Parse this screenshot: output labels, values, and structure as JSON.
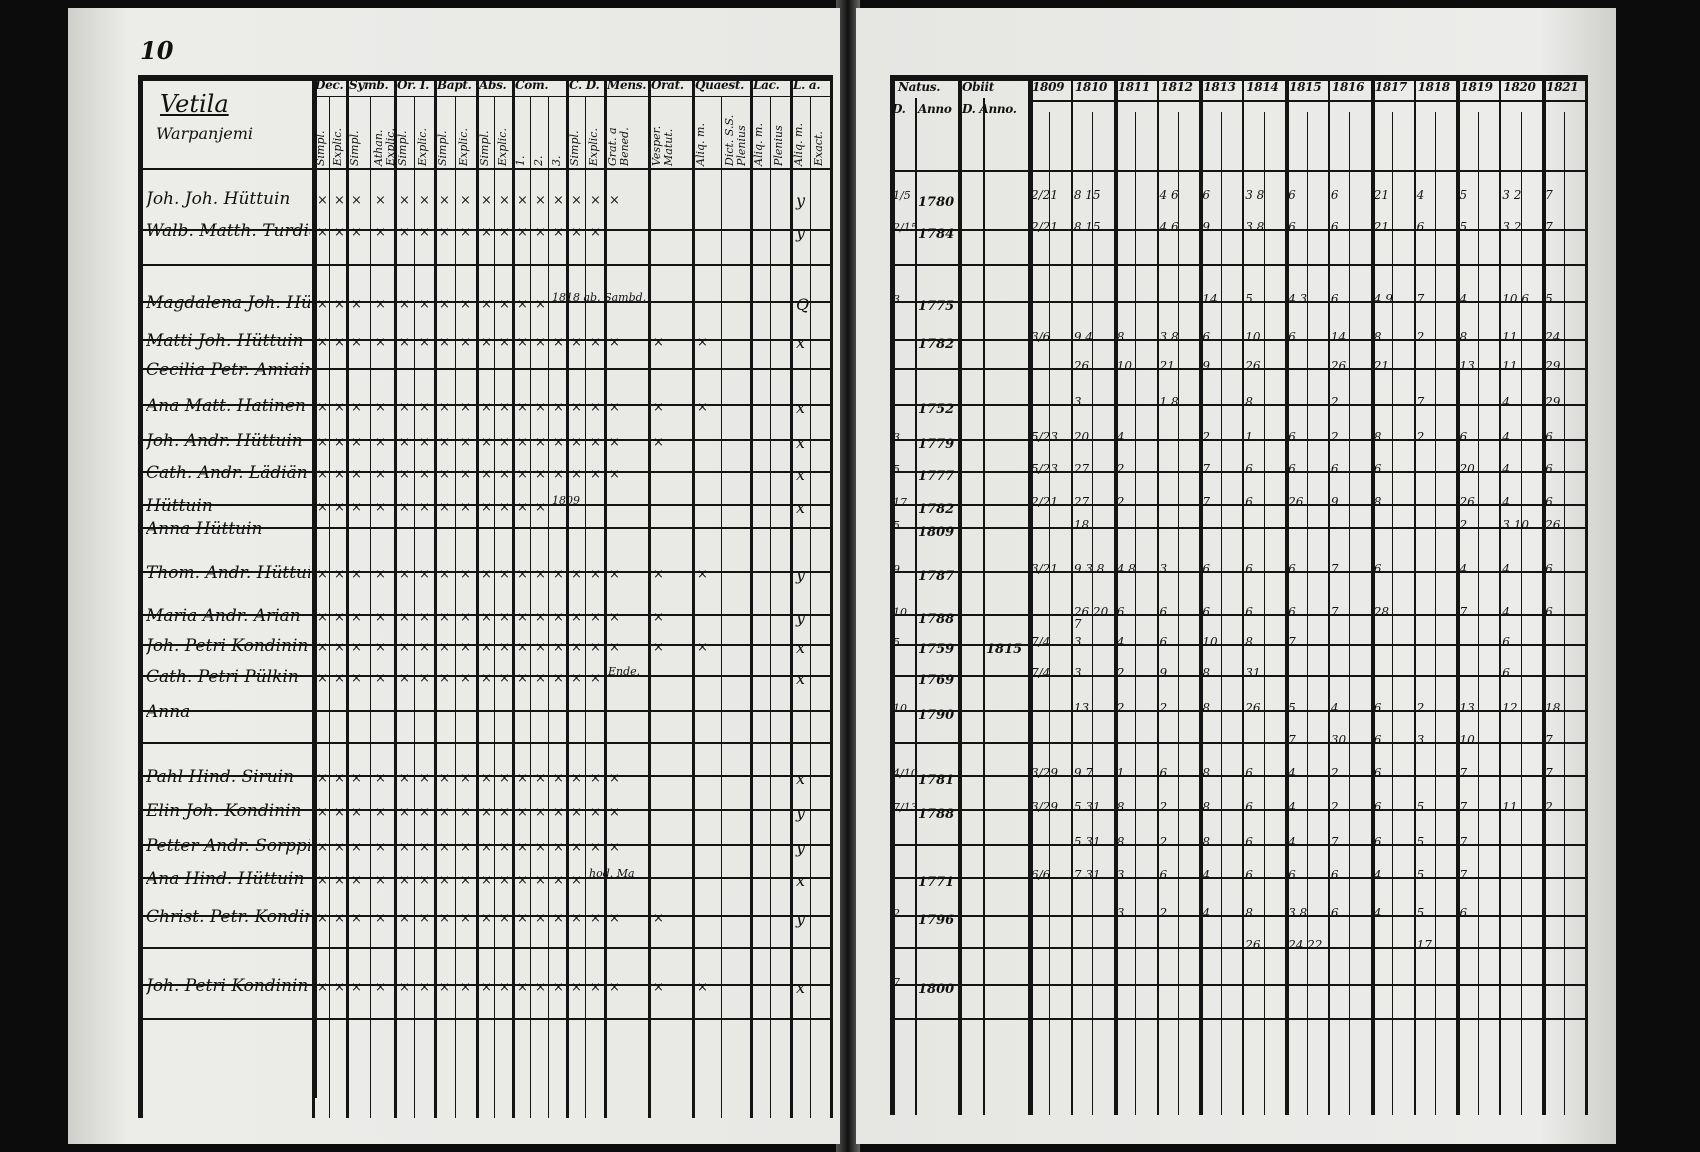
{
  "left_page": {
    "page_number": "10",
    "title": "Vetila",
    "subtitle": "Warpanjemi",
    "column_groups": [
      {
        "label": "Dec.",
        "subs": [
          "Simpl.",
          "Explic."
        ]
      },
      {
        "label": "Symb.",
        "subs": [
          "Simpl.",
          "Athan. Explic."
        ]
      },
      {
        "label": "Or. I.",
        "subs": [
          "Simpl.",
          "Explic."
        ]
      },
      {
        "label": "Bapt.",
        "subs": [
          "Simpl.",
          "Explic."
        ]
      },
      {
        "label": "Abs.",
        "subs": [
          "Simpl.",
          "Explic."
        ]
      },
      {
        "label": "Com.",
        "subs": [
          "1.",
          "2.",
          "3."
        ]
      },
      {
        "label": "C. D.",
        "subs": [
          "Simpl.",
          "Explic."
        ]
      },
      {
        "label": "Mens.",
        "subs": [
          "Grat. a Bened."
        ]
      },
      {
        "label": "Orat.",
        "subs": [
          "Vesper. Matut."
        ]
      },
      {
        "label": "Quaest.",
        "subs": [
          "Aliq. m.",
          "Dict. S.S. Plenius"
        ]
      },
      {
        "label": "Lac.",
        "subs": [
          "Aliq. m.",
          "Plenius"
        ]
      },
      {
        "label": "L. a.",
        "subs": [
          "Aliq. m.",
          "Exact."
        ]
      }
    ],
    "rows": [
      {
        "name": "Joh. Joh. Hüttuin",
        "marks": 16,
        "note": "",
        "la": "y"
      },
      {
        "name": "Walb. Matth. Turdia",
        "marks": 15,
        "note": "",
        "la": "y"
      },
      {
        "name": "",
        "marks": 0,
        "note": "",
        "la": ""
      },
      {
        "name": "Magdalena Joh. Hüttuin",
        "marks": 12,
        "note": "1818 ab. Sambd.",
        "la": "Q"
      },
      {
        "name": "Matti Joh. Hüttuin",
        "marks": 18,
        "note": "",
        "la": "x"
      },
      {
        "name": "Cecilia Petr. Amiain",
        "marks": 0,
        "note": "",
        "la": ""
      },
      {
        "name": "Ana Matt. Hatinen",
        "marks": 18,
        "note": "",
        "la": "x"
      },
      {
        "name": "Joh. Andr. Hüttuin",
        "marks": 17,
        "note": "",
        "la": "x"
      },
      {
        "name": "Cath. Andr. Lädiän",
        "marks": 16,
        "note": "",
        "la": "x"
      },
      {
        "name": "Hüttuin",
        "marks": 12,
        "note": "1809",
        "la": "x"
      },
      {
        "name": "Anna Hüttuin",
        "marks": 0,
        "note": "",
        "la": ""
      },
      {
        "name": "Thom. Andr. Hüttuin",
        "marks": 18,
        "note": "",
        "la": "y"
      },
      {
        "name": "Maria Andr. Arian",
        "marks": 17,
        "note": "",
        "la": "y"
      },
      {
        "name": "Joh. Petri Kondinin",
        "marks": 18,
        "note": "",
        "la": "x"
      },
      {
        "name": "Cath. Petri Pülkin",
        "marks": 15,
        "note": "Ende.",
        "la": "x"
      },
      {
        "name": "Anna",
        "marks": 0,
        "note": "",
        "la": ""
      },
      {
        "name": "",
        "marks": 0,
        "note": "",
        "la": ""
      },
      {
        "name": "Pahl Hind. Siruin",
        "marks": 16,
        "note": "",
        "la": "x"
      },
      {
        "name": "Elin Joh. Kondinin",
        "marks": 16,
        "note": "",
        "la": "y"
      },
      {
        "name": "Petter Andr. Sorppin",
        "marks": 16,
        "note": "",
        "la": "y"
      },
      {
        "name": "Ana Hind. Hüttuin",
        "marks": 14,
        "note": "hod. Ma",
        "la": "x"
      },
      {
        "name": "Christ. Petr. Kondinin",
        "marks": 17,
        "note": "",
        "la": "y"
      },
      {
        "name": "",
        "marks": 0,
        "note": "",
        "la": ""
      },
      {
        "name": "Joh. Petri Kondinin",
        "marks": 18,
        "note": "",
        "la": "x"
      }
    ]
  },
  "right_page": {
    "headers": {
      "natus": "Natus.",
      "obiit": "Obiit",
      "day": "D.",
      "anno": "Anno",
      "anno2": "D. Anno."
    },
    "years": [
      "1809",
      "1810",
      "1811",
      "1812",
      "1813",
      "1814",
      "1815",
      "1816",
      "1817",
      "1818",
      "1819",
      "1820",
      "1821"
    ],
    "rows": [
      {
        "day": "1/5",
        "anno": "1780",
        "obiit": "",
        "cells": [
          "2/21",
          "8 15",
          "",
          "4 6",
          "6",
          "3 8",
          "6",
          "6",
          "21",
          "4",
          "5",
          "3 2",
          "7"
        ]
      },
      {
        "day": "2/15",
        "anno": "1784",
        "obiit": "",
        "cells": [
          "2/21",
          "8 15",
          "",
          "4 6",
          "9",
          "3 8",
          "6",
          "6",
          "21",
          "6",
          "5",
          "3 2",
          "7"
        ]
      },
      {
        "day": "",
        "anno": "",
        "obiit": "",
        "cells": [
          "",
          "",
          "",
          "",
          "",
          "",
          "",
          "",
          "",
          "",
          "",
          "",
          ""
        ]
      },
      {
        "day": "3",
        "anno": "1775",
        "obiit": "",
        "cells": [
          "",
          "",
          "",
          "",
          "14",
          "5",
          "4 3",
          "6",
          "4 9",
          "7",
          "4",
          "10 6",
          "5"
        ]
      },
      {
        "day": "",
        "anno": "1782",
        "obiit": "",
        "cells": [
          "3/6",
          "9 4",
          "8",
          "3 8",
          "6",
          "10",
          "6",
          "14",
          "8",
          "2",
          "8",
          "11",
          "24"
        ]
      },
      {
        "day": "",
        "anno": "",
        "obiit": "",
        "cells": [
          "",
          "26",
          "10",
          "21",
          "9",
          "26",
          "",
          "26",
          "21",
          "",
          "13",
          "11",
          "29"
        ]
      },
      {
        "day": "",
        "anno": "1752",
        "obiit": "",
        "cells": [
          "",
          "3",
          "",
          "1 8",
          "",
          "8",
          "",
          "2",
          "",
          "7",
          "",
          "4",
          "29"
        ]
      },
      {
        "day": "3",
        "anno": "1779",
        "obiit": "",
        "cells": [
          "5/23",
          "20",
          "4",
          "",
          "2",
          "1",
          "6",
          "2",
          "8",
          "2",
          "6",
          "4",
          "6"
        ]
      },
      {
        "day": "5",
        "anno": "1777",
        "obiit": "",
        "cells": [
          "5/23",
          "27",
          "2",
          "",
          "7",
          "6",
          "6",
          "6",
          "6",
          "",
          "20",
          "4",
          "6"
        ]
      },
      {
        "day": "17",
        "anno": "1782",
        "obiit": "",
        "cells": [
          "2/21",
          "27",
          "2",
          "",
          "7",
          "6",
          "26",
          "9",
          "8",
          "",
          "26",
          "4",
          "6"
        ]
      },
      {
        "day": "5",
        "anno": "1809",
        "obiit": "",
        "cells": [
          "",
          "18",
          "",
          "",
          "",
          "",
          "",
          "",
          "",
          "",
          "2",
          "3 10",
          "26"
        ]
      },
      {
        "day": "9",
        "anno": "1787",
        "obiit": "",
        "cells": [
          "3/21",
          "9 3 8",
          "4 8",
          "3",
          "6",
          "6",
          "6",
          "7",
          "6",
          "",
          "4",
          "4",
          "6"
        ]
      },
      {
        "day": "10",
        "anno": "1788",
        "obiit": "",
        "cells": [
          "",
          "26 20 7",
          "6",
          "6",
          "6",
          "6",
          "6",
          "7",
          "28",
          "",
          "7",
          "4",
          "6"
        ]
      },
      {
        "day": "5",
        "anno": "1759",
        "obiit": "1815",
        "cells": [
          "7/4",
          "3",
          "4",
          "6",
          "10",
          "8",
          "7",
          "",
          "",
          "",
          "",
          "6",
          ""
        ]
      },
      {
        "day": "",
        "anno": "1769",
        "obiit": "",
        "cells": [
          "7/4",
          "3",
          "2",
          "9",
          "8",
          "31",
          "",
          "",
          "",
          "",
          "",
          "6",
          ""
        ]
      },
      {
        "day": "10",
        "anno": "1790",
        "obiit": "",
        "cells": [
          "",
          "13",
          "2",
          "2",
          "8",
          "26",
          "5",
          "4",
          "6",
          "2",
          "13",
          "12",
          "18"
        ]
      },
      {
        "day": "",
        "anno": "",
        "obiit": "",
        "cells": [
          "",
          "",
          "",
          "",
          "",
          "",
          "7",
          "30",
          "6",
          "3",
          "10",
          "",
          "7"
        ]
      },
      {
        "day": "4/10",
        "anno": "1781",
        "obiit": "",
        "cells": [
          "3/29",
          "9 7",
          "1",
          "6",
          "8",
          "6",
          "4",
          "2",
          "6",
          "",
          "7",
          "",
          "7"
        ]
      },
      {
        "day": "7/13",
        "anno": "1788",
        "obiit": "",
        "cells": [
          "3/29",
          "5 31",
          "8",
          "2",
          "8",
          "6",
          "4",
          "2",
          "6",
          "5",
          "7",
          "11",
          "2"
        ]
      },
      {
        "day": "",
        "anno": "",
        "obiit": "",
        "cells": [
          "",
          "5 31",
          "8",
          "2",
          "8",
          "6",
          "4",
          "7",
          "6",
          "5",
          "7",
          "",
          ""
        ]
      },
      {
        "day": "",
        "anno": "1771",
        "obiit": "",
        "cells": [
          "6/6",
          "7 31",
          "3",
          "6",
          "4",
          "6",
          "6",
          "6",
          "4",
          "5",
          "7",
          "",
          ""
        ]
      },
      {
        "day": "2",
        "anno": "1796",
        "obiit": "",
        "cells": [
          "",
          "",
          "3",
          "2",
          "4",
          "8",
          "3 8",
          "6",
          "4",
          "5",
          "6",
          "",
          ""
        ]
      },
      {
        "day": "",
        "anno": "",
        "obiit": "",
        "cells": [
          "",
          "",
          "",
          "",
          "",
          "26",
          "24 22",
          "",
          "",
          "17",
          "",
          "",
          ""
        ]
      },
      {
        "day": "7",
        "anno": "1800",
        "obiit": "",
        "cells": [
          "",
          "",
          "",
          "",
          "",
          "",
          "",
          "",
          "",
          "",
          "",
          "",
          ""
        ]
      }
    ]
  }
}
